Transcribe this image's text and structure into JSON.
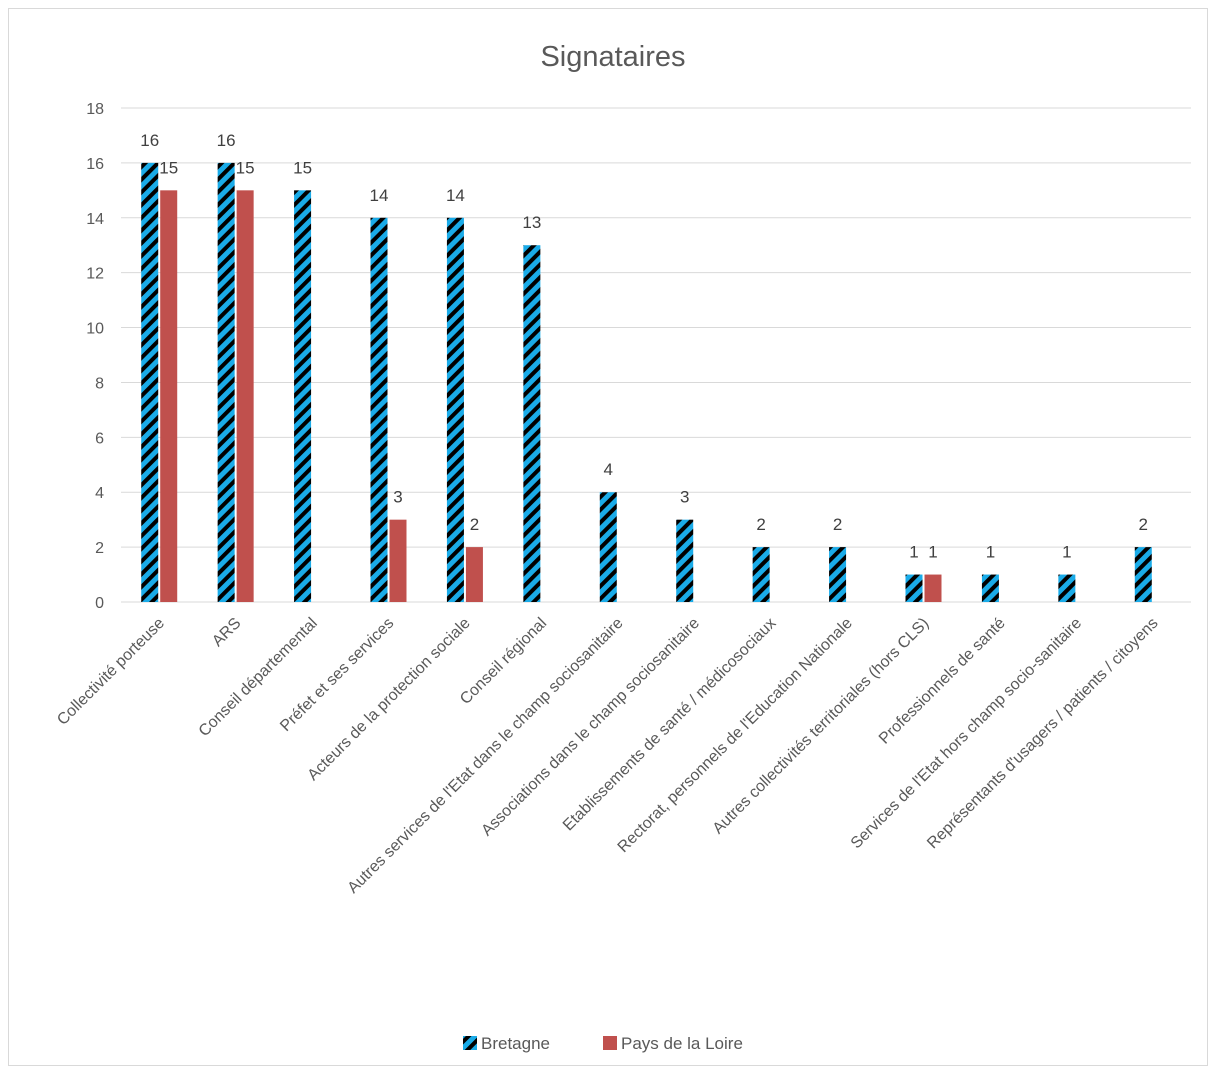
{
  "chart_data": {
    "type": "bar",
    "title": "Signataires",
    "xlabel": "",
    "ylabel": "",
    "ylim": [
      0,
      18
    ],
    "yticks": [
      0,
      2,
      4,
      6,
      8,
      10,
      12,
      14,
      16,
      18
    ],
    "grid": true,
    "legend_position": "bottom",
    "categories": [
      "Collectivité porteuse",
      "ARS",
      "Conseil départemental",
      "Préfet et ses services",
      "Acteurs de la protection sociale",
      "Conseil régional",
      "Autres services de l'Etat dans le champ sociosanitaire",
      "Associations dans le champ sociosanitaire",
      "Etablissements de santé / médicosociaux",
      "Rectorat, personnels de l'Education Nationale",
      "Autres collectivités territoriales (hors CLS)",
      "Professionnels de santé",
      "Services de l'Etat hors champ socio-sanitaire",
      "Représentants d'usagers / patients / citoyens"
    ],
    "series": [
      {
        "name": "Bretagne",
        "color": "#1aabe8",
        "pattern": "diagonal black stripes",
        "values": [
          16,
          16,
          15,
          14,
          14,
          13,
          4,
          3,
          2,
          2,
          1,
          1,
          1,
          2
        ]
      },
      {
        "name": "Pays de la Loire",
        "color": "#c0504d",
        "values": [
          15,
          15,
          null,
          3,
          2,
          null,
          null,
          null,
          null,
          null,
          1,
          null,
          null,
          null
        ]
      }
    ]
  }
}
